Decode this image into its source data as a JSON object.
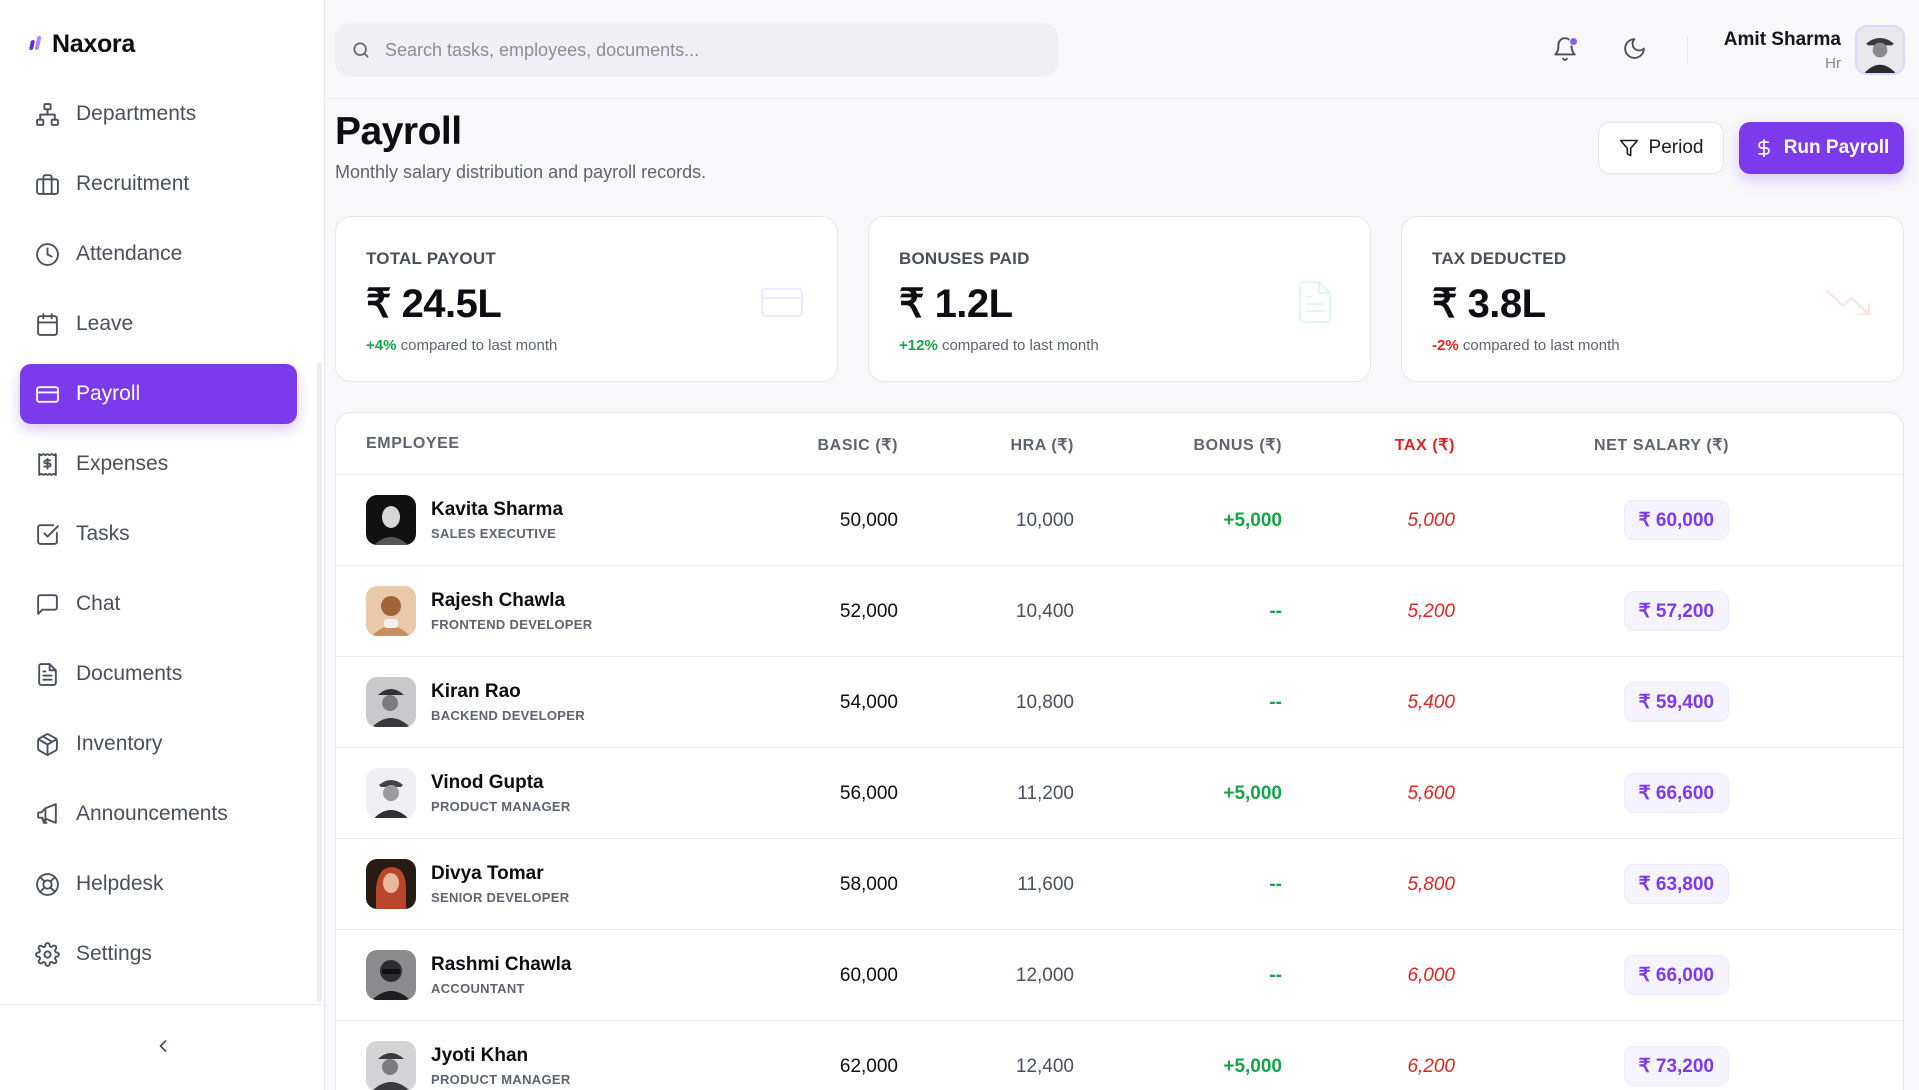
{
  "brand": {
    "name": "Naxora"
  },
  "sidebar": {
    "items": [
      {
        "label": "Departments",
        "icon": "sitemap-icon",
        "active": false
      },
      {
        "label": "Recruitment",
        "icon": "briefcase-icon",
        "active": false
      },
      {
        "label": "Attendance",
        "icon": "clock-icon",
        "active": false
      },
      {
        "label": "Leave",
        "icon": "calendar-icon",
        "active": false
      },
      {
        "label": "Payroll",
        "icon": "credit-card-icon",
        "active": true
      },
      {
        "label": "Expenses",
        "icon": "receipt-icon",
        "active": false
      },
      {
        "label": "Tasks",
        "icon": "checkbox-icon",
        "active": false
      },
      {
        "label": "Chat",
        "icon": "chat-icon",
        "active": false
      },
      {
        "label": "Documents",
        "icon": "document-icon",
        "active": false
      },
      {
        "label": "Inventory",
        "icon": "box-icon",
        "active": false
      },
      {
        "label": "Announcements",
        "icon": "megaphone-icon",
        "active": false
      },
      {
        "label": "Helpdesk",
        "icon": "lifebuoy-icon",
        "active": false
      },
      {
        "label": "Settings",
        "icon": "gear-icon",
        "active": false
      }
    ]
  },
  "search": {
    "placeholder": "Search tasks, employees, documents..."
  },
  "user": {
    "name": "Amit Sharma",
    "role": "Hr"
  },
  "page": {
    "title": "Payroll",
    "subtitle": "Monthly salary distribution and payroll records.",
    "period_label": "Period",
    "run_label": "Run Payroll"
  },
  "stats": [
    {
      "label": "TOTAL PAYOUT",
      "value": "₹ 24.5L",
      "delta": "+4%",
      "delta_text": " compared to last month",
      "trend": "up",
      "icon": "credit-card-icon"
    },
    {
      "label": "BONUSES PAID",
      "value": "₹ 1.2L",
      "delta": "+12%",
      "delta_text": " compared to last month",
      "trend": "up",
      "icon": "document-icon"
    },
    {
      "label": "TAX DEDUCTED",
      "value": "₹ 3.8L",
      "delta": "-2%",
      "delta_text": " compared to last month",
      "trend": "down",
      "icon": "trending-down-icon"
    }
  ],
  "table": {
    "headers": {
      "employee": "EMPLOYEE",
      "basic": "BASIC (₹)",
      "hra": "HRA (₹)",
      "bonus": "BONUS (₹)",
      "tax": "TAX (₹)",
      "net": "NET SALARY (₹)"
    },
    "rows": [
      {
        "name": "Kavita Sharma",
        "role": "SALES EXECUTIVE",
        "basic": "50,000",
        "hra": "10,000",
        "bonus": "+5,000",
        "tax": "5,000",
        "net": "₹ 60,000"
      },
      {
        "name": "Rajesh Chawla",
        "role": "FRONTEND DEVELOPER",
        "basic": "52,000",
        "hra": "10,400",
        "bonus": "--",
        "tax": "5,200",
        "net": "₹ 57,200"
      },
      {
        "name": "Kiran Rao",
        "role": "BACKEND DEVELOPER",
        "basic": "54,000",
        "hra": "10,800",
        "bonus": "--",
        "tax": "5,400",
        "net": "₹ 59,400"
      },
      {
        "name": "Vinod Gupta",
        "role": "PRODUCT MANAGER",
        "basic": "56,000",
        "hra": "11,200",
        "bonus": "+5,000",
        "tax": "5,600",
        "net": "₹ 66,600"
      },
      {
        "name": "Divya Tomar",
        "role": "SENIOR DEVELOPER",
        "basic": "58,000",
        "hra": "11,600",
        "bonus": "--",
        "tax": "5,800",
        "net": "₹ 63,800"
      },
      {
        "name": "Rashmi Chawla",
        "role": "ACCOUNTANT",
        "basic": "60,000",
        "hra": "12,000",
        "bonus": "--",
        "tax": "6,000",
        "net": "₹ 66,000"
      },
      {
        "name": "Jyoti Khan",
        "role": "PRODUCT MANAGER",
        "basic": "62,000",
        "hra": "12,400",
        "bonus": "+5,000",
        "tax": "6,200",
        "net": "₹ 73,200"
      }
    ]
  },
  "colors": {
    "accent": "#7c3aed",
    "positive": "#16a34a",
    "negative": "#dc2626"
  }
}
